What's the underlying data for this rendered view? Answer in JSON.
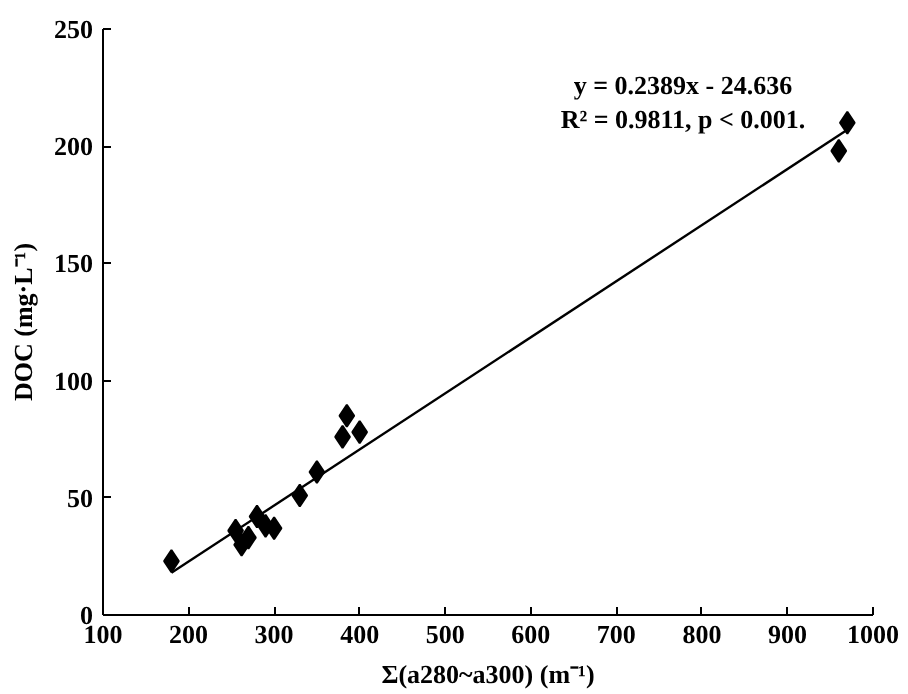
{
  "chart_data": {
    "type": "scatter",
    "xlabel": "Σ(a280~a300) (m⁻¹)",
    "ylabel": "DOC (mg·L⁻¹)",
    "xlim": [
      100,
      1000
    ],
    "ylim": [
      0,
      250
    ],
    "xticks": [
      100,
      200,
      300,
      400,
      500,
      600,
      700,
      800,
      900,
      1000
    ],
    "yticks": [
      0,
      50,
      100,
      150,
      200,
      250
    ],
    "grid": false,
    "annotations": [
      "y = 0.2389x - 24.636",
      "R² = 0.9811, p < 0.001."
    ],
    "series": [
      {
        "color": "#000000",
        "marker": "diamond",
        "x": [
          180,
          255,
          262,
          270,
          280,
          290,
          300,
          330,
          350,
          380,
          385,
          400,
          960,
          970
        ],
        "values": [
          23,
          36,
          30,
          33,
          42,
          38,
          37,
          51,
          61,
          76,
          85,
          78,
          198,
          210
        ]
      },
      {
        "type": "line",
        "color": "#000000",
        "x": [
          180,
          970
        ],
        "values": [
          18,
          207
        ]
      }
    ]
  }
}
